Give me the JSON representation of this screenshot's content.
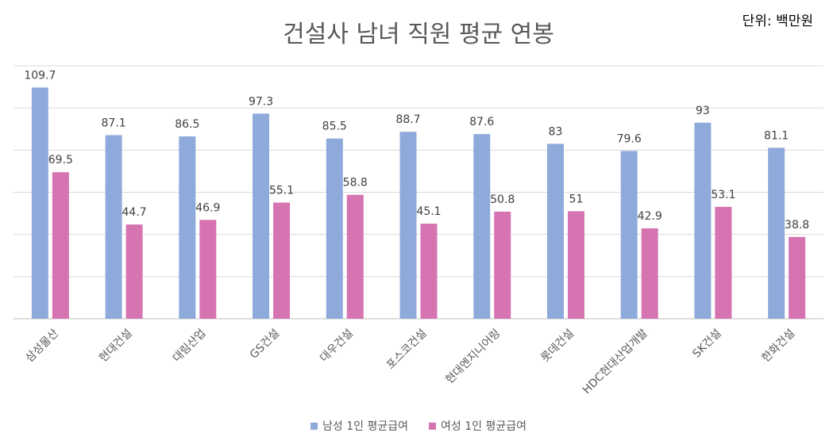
{
  "header": {
    "title": "건설사 남녀 직원 평균 연봉",
    "unit": "단위: 백만원"
  },
  "colors": {
    "male": "#8eaadb",
    "female": "#d574b0",
    "grid": "#d9d9d9",
    "text": "#404040"
  },
  "chart_data": {
    "type": "bar",
    "title": "건설사 남녀 직원 평균 연봉",
    "unit_label": "단위: 백만원",
    "categories": [
      "삼성물산",
      "현대건설",
      "대림산업",
      "GS건설",
      "대우건설",
      "포스코건설",
      "현대엔지니어링",
      "롯데건설",
      "HDC현대산업개발",
      "SK건설",
      "한화건설"
    ],
    "series": [
      {
        "name": "남성 1인 평균급여",
        "values": [
          109.7,
          87.1,
          86.5,
          97.3,
          85.5,
          88.7,
          87.6,
          83,
          79.6,
          93,
          81.1
        ]
      },
      {
        "name": "여성 1인 평균급여",
        "values": [
          69.5,
          44.7,
          46.9,
          55.1,
          58.8,
          45.1,
          50.8,
          51,
          42.9,
          53.1,
          38.8
        ]
      }
    ],
    "ylim": [
      0,
      120
    ],
    "grid": true,
    "legend_position": "bottom"
  }
}
